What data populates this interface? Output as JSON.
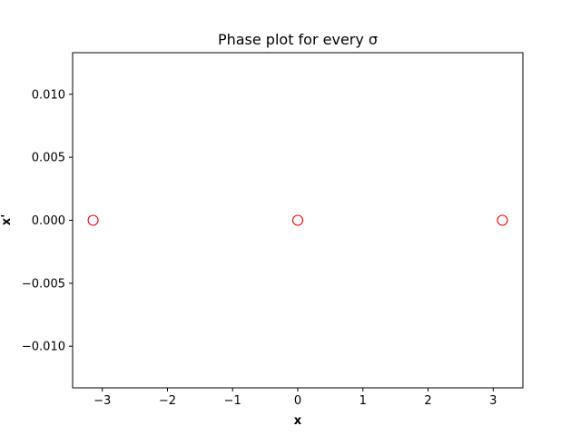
{
  "chart_data": {
    "type": "scatter",
    "title": "Phase plot for every σ",
    "xlabel": "x",
    "ylabel": "x'",
    "xlim": [
      -3.4558,
      3.4558
    ],
    "ylim": [
      -0.0133,
      0.0133
    ],
    "xticks": [
      -3,
      -2,
      -1,
      0,
      1,
      2,
      3
    ],
    "xtick_labels": [
      "−3",
      "−2",
      "−1",
      "0",
      "1",
      "2",
      "3"
    ],
    "yticks": [
      -0.01,
      -0.005,
      0,
      0.005,
      0.01
    ],
    "ytick_labels": [
      "−0.010",
      "−0.005",
      "0.000",
      "0.005",
      "0.010"
    ],
    "grid": false,
    "legend": "none",
    "marker": "open-circle",
    "series": [
      {
        "color": "#ff0000",
        "points": [
          {
            "x": -3.14159,
            "y": 0
          },
          {
            "x": 0,
            "y": 0
          },
          {
            "x": 3.14159,
            "y": 0
          }
        ]
      }
    ]
  }
}
